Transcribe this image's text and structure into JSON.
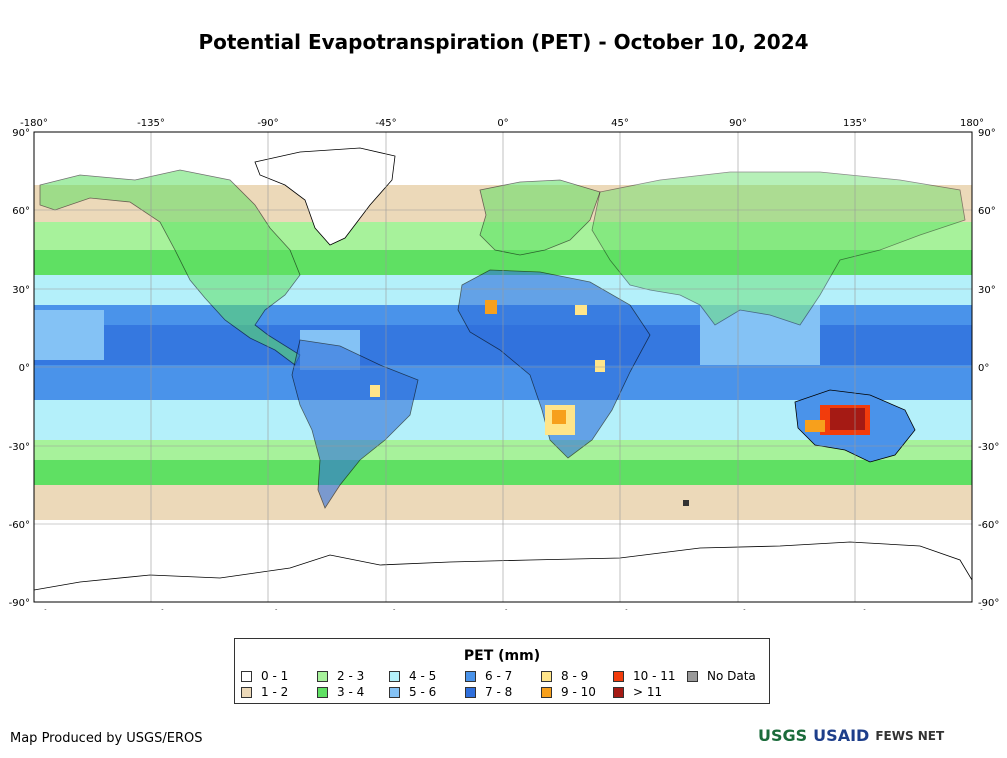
{
  "title": "Potential Evapotranspiration (PET) - October 10, 2024",
  "axes": {
    "lon_ticks": [
      "-180°",
      "-135°",
      "-90°",
      "-45°",
      "0°",
      "45°",
      "90°",
      "135°",
      "180°"
    ],
    "lat_ticks_left": [
      "90°",
      "60°",
      "30°",
      "0°",
      "-30°",
      "-60°",
      "-90°"
    ],
    "lat_ticks_right": [
      "90°",
      "60°",
      "30°",
      "0°",
      "-30°",
      "-60°",
      "-90°"
    ],
    "lon_range": [
      -180,
      180
    ],
    "lat_range": [
      -90,
      90
    ],
    "grid": true
  },
  "legend": {
    "title": "PET (mm)",
    "items": [
      {
        "label": "0 - 1",
        "color": "#ffffff"
      },
      {
        "label": "1 - 2",
        "color": "#ecd9b9"
      },
      {
        "label": "2 - 3",
        "color": "#a7f29b"
      },
      {
        "label": "3 - 4",
        "color": "#5fe063"
      },
      {
        "label": "4 - 5",
        "color": "#b4f0fa"
      },
      {
        "label": "5 - 6",
        "color": "#84c2f5"
      },
      {
        "label": "6 - 7",
        "color": "#4a93ea"
      },
      {
        "label": "7 - 8",
        "color": "#2f6fdc"
      },
      {
        "label": "8 - 9",
        "color": "#ffe58a"
      },
      {
        "label": "9 - 10",
        "color": "#f7a01c"
      },
      {
        "label": "10 - 11",
        "color": "#f23c0c"
      },
      {
        "label": "> 11",
        "color": "#a51a14"
      },
      {
        "label": "No Data",
        "color": "#999999"
      }
    ]
  },
  "credit": "Map Produced by USGS/EROS",
  "logos": {
    "usgs": "USGS",
    "usaid": "USAID",
    "fewsnet": "FEWS NET"
  }
}
